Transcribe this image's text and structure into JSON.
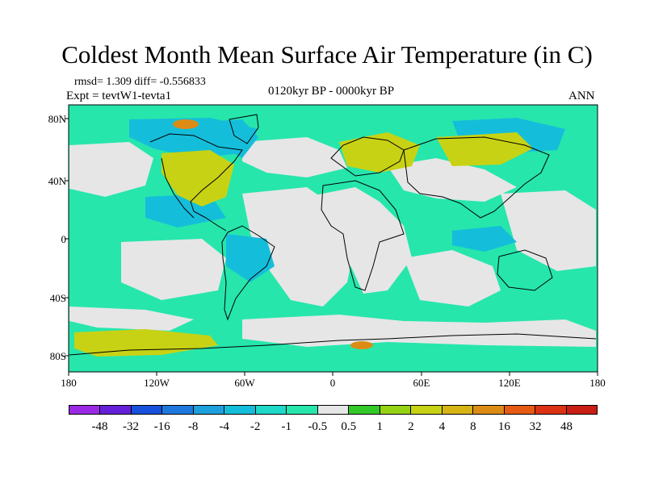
{
  "title": "Coldest Month Mean Surface Air Temperature (in C)",
  "stats": "rmsd= 1.309 diff= -0.556833",
  "experiment": "Expt = tevtW1-tevta1",
  "period": "0120kyr BP - 0000kyr BP",
  "season": "ANN",
  "lat_labels": [
    "80N",
    "40N",
    "0",
    "40S",
    "80S"
  ],
  "lon_labels": [
    "180",
    "120W",
    "60W",
    "0",
    "60E",
    "120E",
    "180"
  ],
  "legend": {
    "labels": [
      "-48",
      "-32",
      "-16",
      "-8",
      "-4",
      "-2",
      "-1",
      "-0.5",
      "0.5",
      "1",
      "2",
      "4",
      "8",
      "16",
      "32",
      "48"
    ],
    "colors": [
      "#9a28e6",
      "#6420d8",
      "#1650dc",
      "#1e78dc",
      "#1ea0dc",
      "#14beda",
      "#1ed8c8",
      "#26e6ac",
      "#e6e6e6",
      "#32c828",
      "#96d214",
      "#c8d214",
      "#d6b414",
      "#dc8c14",
      "#e65a14",
      "#dc3214",
      "#c81e14"
    ]
  },
  "map": {
    "ocean_color": "#26e6ac",
    "neutral_color": "#e6e6e6",
    "cool_color": "#14beda",
    "warm_color": "#c8d214"
  }
}
